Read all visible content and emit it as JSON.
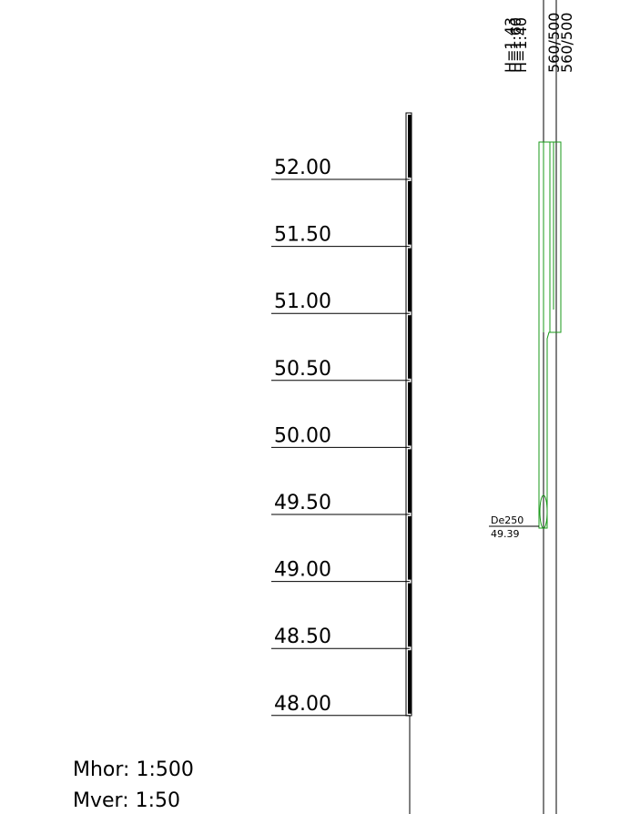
{
  "elevations": [
    "52.00",
    "51.50",
    "51.00",
    "50.50",
    "50.00",
    "49.50",
    "49.00",
    "48.50",
    "48.00"
  ],
  "pipe": {
    "diameter": "De250",
    "invert": "49.39"
  },
  "top_labels": [
    "H=1.43",
    "H=1.60",
    "H=1.40",
    "560/500",
    "560/500"
  ],
  "scales": {
    "horizontal": "Mhor: 1:500",
    "vertical": "Mver: 1:50"
  }
}
